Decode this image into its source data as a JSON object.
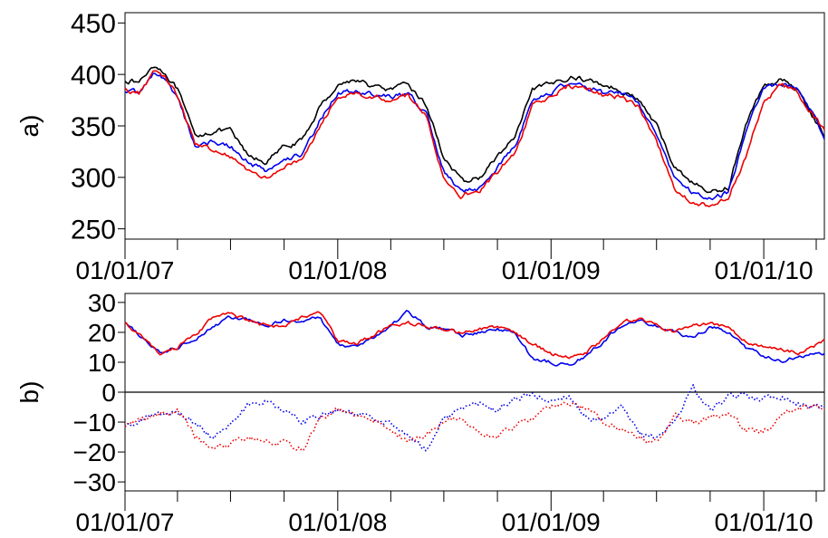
{
  "colors": {
    "black": "#000000",
    "blue": "#0000ee",
    "red": "#ee0000"
  },
  "chart_data": [
    {
      "type": "line",
      "panel_label": "a)",
      "ylim": [
        240,
        460
      ],
      "yticks": [
        250,
        300,
        350,
        400,
        450
      ],
      "xlim": [
        "2007-01-01",
        "2010-04-15"
      ],
      "xtick_labels": [
        "01/01/07",
        "01/01/08",
        "01/01/09",
        "01/01/10"
      ],
      "grid": false,
      "legend": "none",
      "series": [
        {
          "color": "#000000",
          "style": "solid",
          "x": [
            "2007-01-01",
            "2007-01-25",
            "2007-02-20",
            "2007-03-10",
            "2007-04-01",
            "2007-05-01",
            "2007-06-01",
            "2007-07-01",
            "2007-08-01",
            "2007-09-01",
            "2007-10-01",
            "2007-11-01",
            "2007-12-01",
            "2008-01-01",
            "2008-02-01",
            "2008-03-01",
            "2008-04-01",
            "2008-05-01",
            "2008-06-01",
            "2008-07-01",
            "2008-08-01",
            "2008-09-01",
            "2008-10-01",
            "2008-11-01",
            "2008-12-01",
            "2009-01-01",
            "2009-02-01",
            "2009-03-01",
            "2009-04-01",
            "2009-05-01",
            "2009-06-01",
            "2009-07-01",
            "2009-08-01",
            "2009-09-01",
            "2009-10-01",
            "2009-11-01",
            "2009-12-01",
            "2010-01-01",
            "2010-02-01",
            "2010-03-01",
            "2010-04-15"
          ],
          "values": [
            395,
            392,
            410,
            402,
            385,
            340,
            345,
            345,
            320,
            315,
            330,
            335,
            368,
            390,
            395,
            388,
            385,
            390,
            370,
            320,
            295,
            300,
            320,
            340,
            385,
            390,
            398,
            395,
            390,
            385,
            375,
            350,
            310,
            295,
            285,
            290,
            350,
            390,
            395,
            385,
            340
          ]
        },
        {
          "color": "#0000ee",
          "style": "solid",
          "x": [
            "2007-01-01",
            "2007-01-25",
            "2007-02-20",
            "2007-03-10",
            "2007-04-01",
            "2007-05-01",
            "2007-06-01",
            "2007-07-01",
            "2007-08-01",
            "2007-09-01",
            "2007-10-01",
            "2007-11-01",
            "2007-12-01",
            "2008-01-01",
            "2008-02-01",
            "2008-03-01",
            "2008-04-01",
            "2008-05-01",
            "2008-06-01",
            "2008-07-01",
            "2008-08-01",
            "2008-09-01",
            "2008-10-01",
            "2008-11-01",
            "2008-12-01",
            "2009-01-01",
            "2009-02-01",
            "2009-03-01",
            "2009-04-01",
            "2009-05-01",
            "2009-06-01",
            "2009-07-01",
            "2009-08-01",
            "2009-09-01",
            "2009-10-01",
            "2009-11-01",
            "2009-12-01",
            "2010-01-01",
            "2010-02-01",
            "2010-03-01",
            "2010-04-15"
          ],
          "values": [
            385,
            382,
            402,
            395,
            378,
            330,
            335,
            330,
            315,
            305,
            318,
            322,
            355,
            382,
            385,
            380,
            378,
            382,
            362,
            305,
            285,
            290,
            310,
            330,
            378,
            382,
            392,
            388,
            382,
            382,
            372,
            340,
            300,
            285,
            280,
            285,
            345,
            385,
            392,
            385,
            340
          ]
        },
        {
          "color": "#ee0000",
          "style": "solid",
          "x": [
            "2007-01-01",
            "2007-01-25",
            "2007-02-20",
            "2007-03-10",
            "2007-04-01",
            "2007-05-01",
            "2007-06-01",
            "2007-07-01",
            "2007-08-01",
            "2007-09-01",
            "2007-10-01",
            "2007-11-01",
            "2007-12-01",
            "2008-01-01",
            "2008-02-01",
            "2008-03-01",
            "2008-04-01",
            "2008-05-01",
            "2008-06-01",
            "2008-07-01",
            "2008-08-01",
            "2008-09-01",
            "2008-10-01",
            "2008-11-01",
            "2008-12-01",
            "2009-01-01",
            "2009-02-01",
            "2009-03-01",
            "2009-04-01",
            "2009-05-01",
            "2009-06-01",
            "2009-07-01",
            "2009-08-01",
            "2009-09-01",
            "2009-10-01",
            "2009-11-01",
            "2009-12-01",
            "2010-01-01",
            "2010-02-01",
            "2010-03-01",
            "2010-04-15"
          ],
          "values": [
            385,
            382,
            405,
            398,
            380,
            332,
            328,
            320,
            305,
            300,
            312,
            315,
            350,
            380,
            382,
            378,
            375,
            380,
            360,
            300,
            282,
            288,
            305,
            325,
            370,
            378,
            390,
            385,
            380,
            378,
            368,
            335,
            290,
            275,
            272,
            280,
            320,
            375,
            390,
            382,
            345
          ]
        }
      ]
    },
    {
      "type": "line",
      "panel_label": "b)",
      "ylim": [
        -33,
        33
      ],
      "yticks": [
        -30,
        -20,
        -10,
        0,
        10,
        20,
        30
      ],
      "ytick_labels": [
        "−30",
        "−20",
        "−10",
        "0",
        "10",
        "20",
        "30"
      ],
      "hline": 0,
      "xlim": [
        "2007-01-01",
        "2010-04-15"
      ],
      "xtick_labels": [
        "01/01/07",
        "01/01/08",
        "01/01/09",
        "01/01/10"
      ],
      "grid": false,
      "legend": "none",
      "series": [
        {
          "color": "#0000ee",
          "style": "solid",
          "x": [
            "2007-01-01",
            "2007-02-01",
            "2007-03-01",
            "2007-04-01",
            "2007-05-01",
            "2007-06-01",
            "2007-07-01",
            "2007-08-01",
            "2007-09-01",
            "2007-10-01",
            "2007-11-01",
            "2007-12-01",
            "2008-01-01",
            "2008-02-01",
            "2008-03-01",
            "2008-04-01",
            "2008-05-01",
            "2008-06-01",
            "2008-07-01",
            "2008-08-01",
            "2008-09-01",
            "2008-10-01",
            "2008-11-01",
            "2008-12-01",
            "2009-01-01",
            "2009-02-01",
            "2009-03-01",
            "2009-04-01",
            "2009-05-01",
            "2009-06-01",
            "2009-07-01",
            "2009-08-01",
            "2009-09-01",
            "2009-10-01",
            "2009-11-01",
            "2009-12-01",
            "2010-01-01",
            "2010-02-01",
            "2010-03-01",
            "2010-04-15"
          ],
          "values": [
            23,
            18,
            13,
            15,
            18,
            22,
            25,
            24,
            22,
            24,
            24,
            25,
            16,
            15,
            18,
            22,
            27,
            22,
            21,
            19,
            20,
            21,
            20,
            11,
            10,
            9,
            12,
            17,
            22,
            24,
            22,
            20,
            18,
            22,
            20,
            15,
            12,
            10,
            12,
            13
          ]
        },
        {
          "color": "#ee0000",
          "style": "solid",
          "x": [
            "2007-01-01",
            "2007-02-01",
            "2007-03-01",
            "2007-04-01",
            "2007-05-01",
            "2007-06-01",
            "2007-07-01",
            "2007-08-01",
            "2007-09-01",
            "2007-10-01",
            "2007-11-01",
            "2007-12-01",
            "2008-01-01",
            "2008-02-01",
            "2008-03-01",
            "2008-04-01",
            "2008-05-01",
            "2008-06-01",
            "2008-07-01",
            "2008-08-01",
            "2008-09-01",
            "2008-10-01",
            "2008-11-01",
            "2008-12-01",
            "2009-01-01",
            "2009-02-01",
            "2009-03-01",
            "2009-04-01",
            "2009-05-01",
            "2009-06-01",
            "2009-07-01",
            "2009-08-01",
            "2009-09-01",
            "2009-10-01",
            "2009-11-01",
            "2009-12-01",
            "2010-01-01",
            "2010-02-01",
            "2010-03-01",
            "2010-04-15"
          ],
          "values": [
            23,
            18,
            13,
            15,
            19,
            25,
            26,
            24,
            22,
            22,
            25,
            27,
            17,
            16,
            19,
            22,
            23,
            22,
            21,
            20,
            21,
            22,
            20,
            16,
            13,
            12,
            13,
            18,
            23,
            25,
            22,
            20,
            22,
            23,
            22,
            17,
            15,
            14,
            13,
            17
          ]
        },
        {
          "color": "#0000ee",
          "style": "dotted",
          "x": [
            "2007-01-01",
            "2007-02-01",
            "2007-03-01",
            "2007-04-01",
            "2007-05-01",
            "2007-06-01",
            "2007-07-01",
            "2007-08-01",
            "2007-09-01",
            "2007-10-01",
            "2007-11-01",
            "2007-12-01",
            "2008-01-01",
            "2008-02-01",
            "2008-03-01",
            "2008-04-01",
            "2008-05-01",
            "2008-06-01",
            "2008-07-01",
            "2008-08-01",
            "2008-09-01",
            "2008-10-01",
            "2008-11-01",
            "2008-12-01",
            "2009-01-01",
            "2009-02-01",
            "2009-03-01",
            "2009-04-01",
            "2009-05-01",
            "2009-06-01",
            "2009-07-01",
            "2009-08-01",
            "2009-09-01",
            "2009-10-01",
            "2009-11-01",
            "2009-12-01",
            "2010-01-01",
            "2010-02-01",
            "2010-03-01",
            "2010-04-15"
          ],
          "values": [
            -12,
            -9,
            -7,
            -6,
            -10,
            -15,
            -10,
            -4,
            -3,
            -6,
            -10,
            -8,
            -6,
            -7,
            -9,
            -10,
            -15,
            -19,
            -8,
            -6,
            -4,
            -6,
            -2,
            -1,
            -3,
            -1,
            -8,
            -10,
            -5,
            -14,
            -15,
            -10,
            2,
            -6,
            -2,
            -1,
            -2,
            -1,
            -4,
            -5
          ]
        },
        {
          "color": "#ee0000",
          "style": "dotted",
          "x": [
            "2007-01-01",
            "2007-02-01",
            "2007-03-01",
            "2007-04-01",
            "2007-05-01",
            "2007-06-01",
            "2007-07-01",
            "2007-08-01",
            "2007-09-01",
            "2007-10-01",
            "2007-11-01",
            "2007-12-01",
            "2008-01-01",
            "2008-02-01",
            "2008-03-01",
            "2008-04-01",
            "2008-05-01",
            "2008-06-01",
            "2008-07-01",
            "2008-08-01",
            "2008-09-01",
            "2008-10-01",
            "2008-11-01",
            "2008-12-01",
            "2009-01-01",
            "2009-02-01",
            "2009-03-01",
            "2009-04-01",
            "2009-05-01",
            "2009-06-01",
            "2009-07-01",
            "2009-08-01",
            "2009-09-01",
            "2009-10-01",
            "2009-11-01",
            "2009-12-01",
            "2010-01-01",
            "2010-02-01",
            "2010-03-01",
            "2010-04-15"
          ],
          "values": [
            -12,
            -9,
            -7,
            -6,
            -15,
            -19,
            -17,
            -15,
            -16,
            -17,
            -19,
            -9,
            -6,
            -8,
            -9,
            -12,
            -17,
            -14,
            -10,
            -8,
            -14,
            -15,
            -11,
            -9,
            -5,
            -4,
            -5,
            -10,
            -12,
            -15,
            -17,
            -8,
            -10,
            -9,
            -7,
            -13,
            -13,
            -8,
            -5,
            -5
          ]
        }
      ]
    }
  ]
}
